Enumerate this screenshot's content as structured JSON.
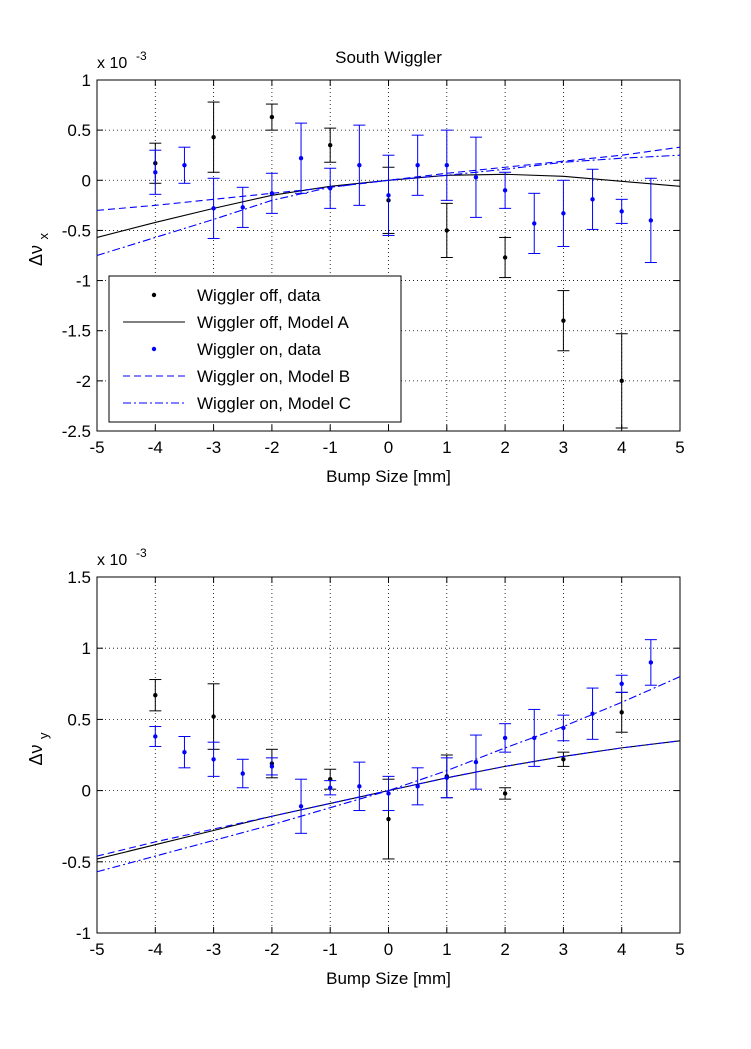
{
  "chart_data": [
    {
      "type": "scatter",
      "title": "South Wiggler",
      "xlabel": "Bump Size [mm]",
      "ylabel_base": "Δν",
      "ylabel_sub": "x",
      "exponent_label": "x 10",
      "exponent_power": "-3",
      "xlim": [
        -5,
        5
      ],
      "ylim": [
        -2.5,
        1
      ],
      "xticks": [
        -5,
        -4,
        -3,
        -2,
        -1,
        0,
        1,
        2,
        3,
        4,
        5
      ],
      "yticks": [
        -2.5,
        -2,
        -1.5,
        -1,
        -0.5,
        0,
        0.5,
        1
      ],
      "grid": true,
      "legend_placement": "lower-left",
      "series": [
        {
          "name": "Wiggler off, data",
          "kind": "errorbar",
          "color": "#000000",
          "x": [
            -4,
            -3,
            -2,
            -1,
            0,
            1,
            2,
            3,
            4
          ],
          "y": [
            0.17,
            0.43,
            0.63,
            0.35,
            -0.2,
            -0.5,
            -0.77,
            -1.4,
            -2.0
          ],
          "err": [
            0.2,
            0.35,
            0.13,
            0.17,
            0.33,
            0.27,
            0.2,
            0.3,
            0.47
          ]
        },
        {
          "name": "Wiggler off, Model A",
          "kind": "line",
          "color": "#000000",
          "dash": "",
          "x": [
            -5,
            -4,
            -3,
            -2,
            -1,
            0,
            1,
            2,
            3,
            4,
            5
          ],
          "y": [
            -0.57,
            -0.42,
            -0.28,
            -0.15,
            -0.06,
            0,
            0.05,
            0.06,
            0.04,
            -0.01,
            -0.06
          ]
        },
        {
          "name": "Wiggler on, data",
          "kind": "errorbar",
          "color": "#0000ff",
          "x": [
            -4,
            -3.5,
            -3,
            -2.5,
            -2,
            -1.5,
            -1,
            -0.5,
            0,
            0.5,
            1,
            1.5,
            2,
            2.5,
            3,
            3.5,
            4,
            4.5
          ],
          "y": [
            0.08,
            0.15,
            -0.28,
            -0.27,
            -0.13,
            0.22,
            -0.08,
            0.15,
            -0.15,
            0.15,
            0.15,
            0.03,
            -0.1,
            -0.43,
            -0.33,
            -0.19,
            -0.31,
            -0.4
          ],
          "err": [
            0.22,
            0.18,
            0.3,
            0.2,
            0.2,
            0.35,
            0.2,
            0.4,
            0.4,
            0.3,
            0.35,
            0.4,
            0.18,
            0.3,
            0.33,
            0.3,
            0.12,
            0.42
          ]
        },
        {
          "name": "Wiggler on, Model B",
          "kind": "line",
          "color": "#0000ff",
          "dash": "7,4",
          "x": [
            -5,
            -4,
            -3,
            -2,
            -1,
            0,
            1,
            2,
            3,
            4,
            5
          ],
          "y": [
            -0.3,
            -0.25,
            -0.19,
            -0.13,
            -0.07,
            0,
            0.07,
            0.13,
            0.19,
            0.25,
            0.33
          ]
        },
        {
          "name": "Wiggler on, Model C",
          "kind": "line",
          "color": "#0000ff",
          "dash": "8,3,2,3",
          "x": [
            -5,
            -4,
            -3,
            -2,
            -1,
            0,
            1,
            2,
            3,
            4,
            5
          ],
          "y": [
            -0.75,
            -0.57,
            -0.39,
            -0.2,
            -0.07,
            0,
            0.05,
            0.11,
            0.18,
            0.22,
            0.25
          ]
        }
      ]
    },
    {
      "type": "scatter",
      "title": "",
      "xlabel": "Bump Size [mm]",
      "ylabel_base": "Δν",
      "ylabel_sub": "y",
      "exponent_label": "x 10",
      "exponent_power": "-3",
      "xlim": [
        -5,
        5
      ],
      "ylim": [
        -1,
        1.5
      ],
      "xticks": [
        -5,
        -4,
        -3,
        -2,
        -1,
        0,
        1,
        2,
        3,
        4,
        5
      ],
      "yticks": [
        -1,
        -0.5,
        0,
        0.5,
        1,
        1.5
      ],
      "grid": true,
      "series": [
        {
          "name": "Wiggler off, data",
          "kind": "errorbar",
          "color": "#000000",
          "x": [
            -4,
            -3,
            -2,
            -1,
            0,
            1,
            2,
            3,
            4
          ],
          "y": [
            0.67,
            0.52,
            0.19,
            0.08,
            -0.2,
            0.1,
            -0.02,
            0.22,
            0.55
          ],
          "err": [
            0.11,
            0.23,
            0.1,
            0.07,
            0.28,
            0.15,
            0.04,
            0.05,
            0.14
          ]
        },
        {
          "name": "Wiggler off, Model A",
          "kind": "line",
          "color": "#000000",
          "dash": "",
          "x": [
            -5,
            -4,
            -3,
            -2,
            -1,
            0,
            1,
            2,
            3,
            4,
            5
          ],
          "y": [
            -0.48,
            -0.38,
            -0.28,
            -0.18,
            -0.09,
            0,
            0.09,
            0.17,
            0.24,
            0.3,
            0.35
          ]
        },
        {
          "name": "Wiggler on, data",
          "kind": "errorbar",
          "color": "#0000ff",
          "x": [
            -4,
            -3.5,
            -3,
            -2.5,
            -2,
            -1.5,
            -1,
            -0.5,
            0,
            0.5,
            1,
            1.5,
            2,
            2.5,
            3,
            3.5,
            4,
            4.5
          ],
          "y": [
            0.38,
            0.27,
            0.22,
            0.12,
            0.17,
            -0.11,
            0.02,
            0.03,
            -0.02,
            0.03,
            0.09,
            0.2,
            0.37,
            0.37,
            0.44,
            0.54,
            0.75,
            0.9
          ],
          "err": [
            0.07,
            0.11,
            0.12,
            0.1,
            0.06,
            0.19,
            0.05,
            0.17,
            0.12,
            0.13,
            0.14,
            0.19,
            0.1,
            0.2,
            0.09,
            0.18,
            0.06,
            0.16
          ]
        },
        {
          "name": "Wiggler on, Model B",
          "kind": "line",
          "color": "#0000ff",
          "dash": "7,4",
          "x": [
            -5,
            -4,
            -3,
            -2,
            -1,
            0,
            1,
            2,
            3,
            4,
            5
          ],
          "y": [
            -0.46,
            -0.36,
            -0.27,
            -0.18,
            -0.09,
            0,
            0.09,
            0.17,
            0.24,
            0.3,
            0.35
          ]
        },
        {
          "name": "Wiggler on, Model C",
          "kind": "line",
          "color": "#0000ff",
          "dash": "8,3,2,3",
          "x": [
            -5,
            -4,
            -3,
            -2,
            -1,
            0,
            1,
            2,
            3,
            4,
            5
          ],
          "y": [
            -0.57,
            -0.46,
            -0.35,
            -0.24,
            -0.12,
            0,
            0.14,
            0.3,
            0.45,
            0.62,
            0.8
          ]
        }
      ]
    }
  ]
}
